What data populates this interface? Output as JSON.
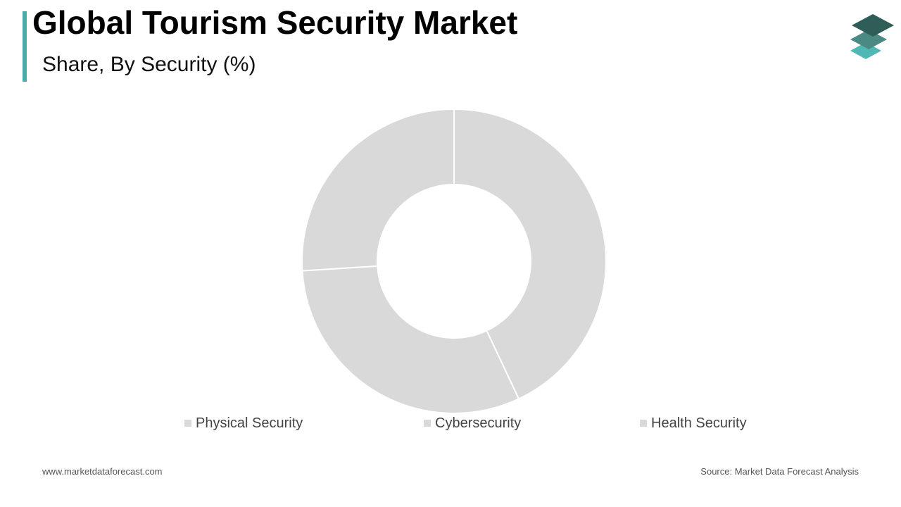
{
  "header": {
    "title": "Global Tourism Security Market",
    "subtitle": "Share, By Security (%)",
    "accent_color": "#4aaba8"
  },
  "logo": {
    "icon": "stacked-layers-icon",
    "colors": [
      "#2f5d57",
      "#4b8a82",
      "#4fb8b4"
    ]
  },
  "chart_data": {
    "type": "pie",
    "variant": "donut",
    "title": "Share, By Security (%)",
    "categories": [
      "Physical Security",
      "Cybersecurity",
      "Health Security"
    ],
    "values": [
      43,
      31,
      26
    ],
    "unit": "%",
    "slice_color": "#d9d9d9",
    "separator_color": "#ffffff",
    "legend_position": "bottom"
  },
  "legend": {
    "items": [
      {
        "label": "Physical Security",
        "color": "#d9d9d9"
      },
      {
        "label": "Cybersecurity",
        "color": "#d9d9d9"
      },
      {
        "label": "Health Security",
        "color": "#d9d9d9"
      }
    ]
  },
  "footer": {
    "website": "www.marketdataforecast.com",
    "source": "Source: Market Data Forecast Analysis"
  }
}
